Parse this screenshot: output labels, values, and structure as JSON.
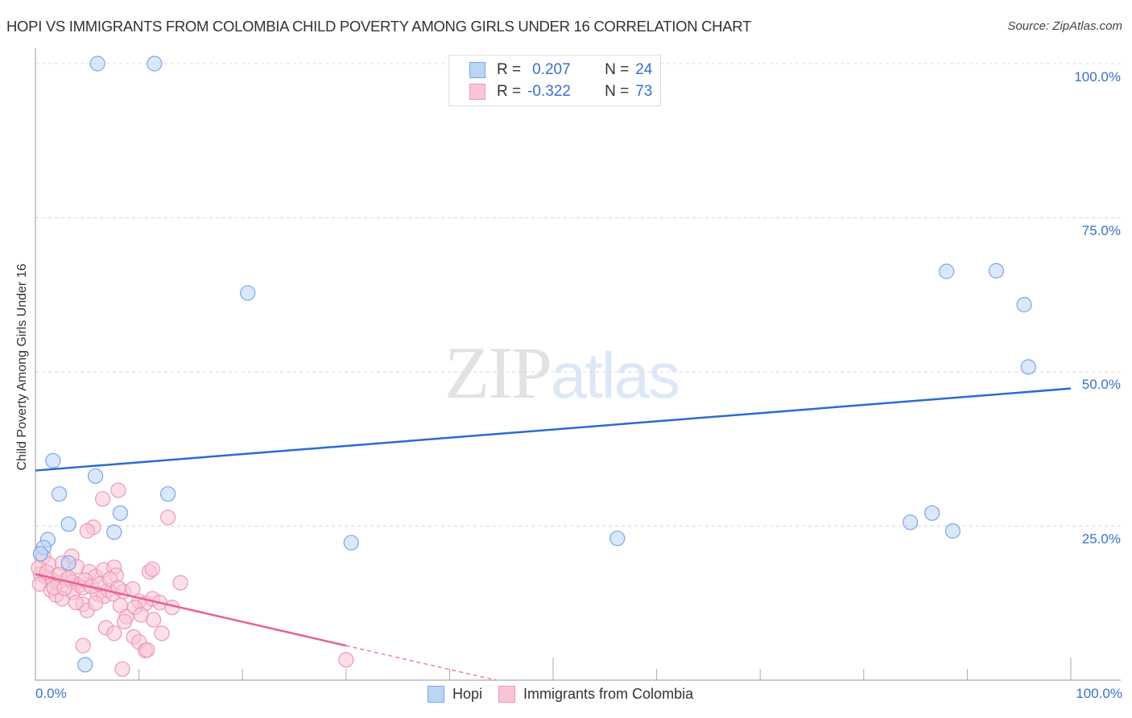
{
  "header": {
    "title": "HOPI VS IMMIGRANTS FROM COLOMBIA CHILD POVERTY AMONG GIRLS UNDER 16 CORRELATION CHART",
    "source": "Source: ZipAtlas.com"
  },
  "watermark": {
    "zip": "ZIP",
    "atlas": "atlas"
  },
  "axes": {
    "ylabel": "Child Poverty Among Girls Under 16",
    "y_ticks": [
      "100.0%",
      "75.0%",
      "50.0%",
      "25.0%"
    ],
    "x_left": "0.0%",
    "x_right": "100.0%"
  },
  "legend_top": {
    "rows": [
      {
        "r_label": "R =",
        "r_value": "0.207",
        "n_label": "N =",
        "n_value": "24"
      },
      {
        "r_label": "R =",
        "r_value": "-0.322",
        "n_label": "N =",
        "n_value": "73"
      }
    ]
  },
  "legend_bottom": {
    "items": [
      {
        "label": "Hopi"
      },
      {
        "label": "Immigrants from Colombia"
      }
    ]
  },
  "colors": {
    "hopi_fill": "#bcd5f5",
    "hopi_stroke": "#7aa7e6",
    "hopi_line": "#2a6ccf",
    "colombia_fill": "#f9c5d5",
    "colombia_stroke": "#ee98b3",
    "colombia_line": "#e8628c",
    "tick_label": "#3a70c8"
  },
  "chart_data": {
    "type": "scatter",
    "title": "HOPI VS IMMIGRANTS FROM COLOMBIA CHILD POVERTY AMONG GIRLS UNDER 16 CORRELATION CHART",
    "xlabel": "",
    "ylabel": "Child Poverty Among Girls Under 16",
    "xlim": [
      0,
      100
    ],
    "ylim": [
      0,
      100
    ],
    "x_tick_labels": [
      "0.0%",
      "100.0%"
    ],
    "y_tick_labels": [
      "25.0%",
      "50.0%",
      "75.0%",
      "100.0%"
    ],
    "grid": "horizontal dashed",
    "legend_position": "top-center and bottom",
    "series": [
      {
        "name": "Hopi",
        "R": 0.207,
        "N": 24,
        "trend": {
          "x": [
            0,
            100
          ],
          "y": [
            34.0,
            47.3
          ]
        },
        "points": [
          [
            6.0,
            100
          ],
          [
            11.5,
            100
          ],
          [
            20.5,
            62.8
          ],
          [
            1.7,
            35.6
          ],
          [
            2.3,
            30.2
          ],
          [
            5.8,
            33.1
          ],
          [
            12.8,
            30.2
          ],
          [
            8.2,
            27.1
          ],
          [
            3.2,
            25.3
          ],
          [
            7.6,
            24.0
          ],
          [
            1.2,
            22.8
          ],
          [
            0.8,
            21.5
          ],
          [
            30.5,
            22.3
          ],
          [
            56.2,
            23.0
          ],
          [
            3.2,
            19.0
          ],
          [
            0.5,
            20.5
          ],
          [
            4.8,
            2.5
          ],
          [
            88.0,
            66.3
          ],
          [
            92.8,
            66.4
          ],
          [
            95.5,
            60.9
          ],
          [
            95.9,
            50.8
          ],
          [
            84.5,
            25.6
          ],
          [
            86.6,
            27.1
          ],
          [
            88.6,
            24.2
          ]
        ]
      },
      {
        "name": "Immigrants from Colombia",
        "R": -0.322,
        "N": 73,
        "trend": {
          "x": [
            0,
            30
          ],
          "y": [
            17.2,
            5.6
          ],
          "dashed_extension": {
            "x": [
              30,
              44.5
            ],
            "y": [
              5.6,
              0
            ]
          }
        },
        "points": [
          [
            8.0,
            30.8
          ],
          [
            6.5,
            29.4
          ],
          [
            12.8,
            26.4
          ],
          [
            5.6,
            24.8
          ],
          [
            5.0,
            24.2
          ],
          [
            0.8,
            20.0
          ],
          [
            1.3,
            18.8
          ],
          [
            3.5,
            20.1
          ],
          [
            2.6,
            19.0
          ],
          [
            4.0,
            18.4
          ],
          [
            0.5,
            17.2
          ],
          [
            1.0,
            16.8
          ],
          [
            1.6,
            16.3
          ],
          [
            2.2,
            15.8
          ],
          [
            0.4,
            15.6
          ],
          [
            3.0,
            16.4
          ],
          [
            3.6,
            15.9
          ],
          [
            4.2,
            15.4
          ],
          [
            5.2,
            17.6
          ],
          [
            5.8,
            16.8
          ],
          [
            6.6,
            17.9
          ],
          [
            7.6,
            18.3
          ],
          [
            7.8,
            17.0
          ],
          [
            11.0,
            17.6
          ],
          [
            11.3,
            18.0
          ],
          [
            14.0,
            15.8
          ],
          [
            1.5,
            14.6
          ],
          [
            2.0,
            13.8
          ],
          [
            2.6,
            13.2
          ],
          [
            3.6,
            14.2
          ],
          [
            4.6,
            15.0
          ],
          [
            6.0,
            14.0
          ],
          [
            6.6,
            13.6
          ],
          [
            7.0,
            14.6
          ],
          [
            7.5,
            14.0
          ],
          [
            8.5,
            14.4
          ],
          [
            10.0,
            12.8
          ],
          [
            10.6,
            12.4
          ],
          [
            11.3,
            13.2
          ],
          [
            12.0,
            12.6
          ],
          [
            13.2,
            11.8
          ],
          [
            4.6,
            12.3
          ],
          [
            5.0,
            11.3
          ],
          [
            5.8,
            12.5
          ],
          [
            8.2,
            12.1
          ],
          [
            8.8,
            10.3
          ],
          [
            9.6,
            11.8
          ],
          [
            10.2,
            10.6
          ],
          [
            11.4,
            9.8
          ],
          [
            12.2,
            7.6
          ],
          [
            6.8,
            8.5
          ],
          [
            7.6,
            7.6
          ],
          [
            8.6,
            9.5
          ],
          [
            9.5,
            7.0
          ],
          [
            10.0,
            6.2
          ],
          [
            4.6,
            5.6
          ],
          [
            10.6,
            4.8
          ],
          [
            10.8,
            4.9
          ],
          [
            8.4,
            1.8
          ],
          [
            30.0,
            3.3
          ],
          [
            0.3,
            18.2
          ],
          [
            1.1,
            17.5
          ],
          [
            2.3,
            17.1
          ],
          [
            3.2,
            16.6
          ],
          [
            4.8,
            16.2
          ],
          [
            5.4,
            15.2
          ],
          [
            6.2,
            15.6
          ],
          [
            7.2,
            16.4
          ],
          [
            8.0,
            15.0
          ],
          [
            9.4,
            14.8
          ],
          [
            1.8,
            15.0
          ],
          [
            2.8,
            14.9
          ],
          [
            3.9,
            12.6
          ]
        ]
      }
    ]
  }
}
